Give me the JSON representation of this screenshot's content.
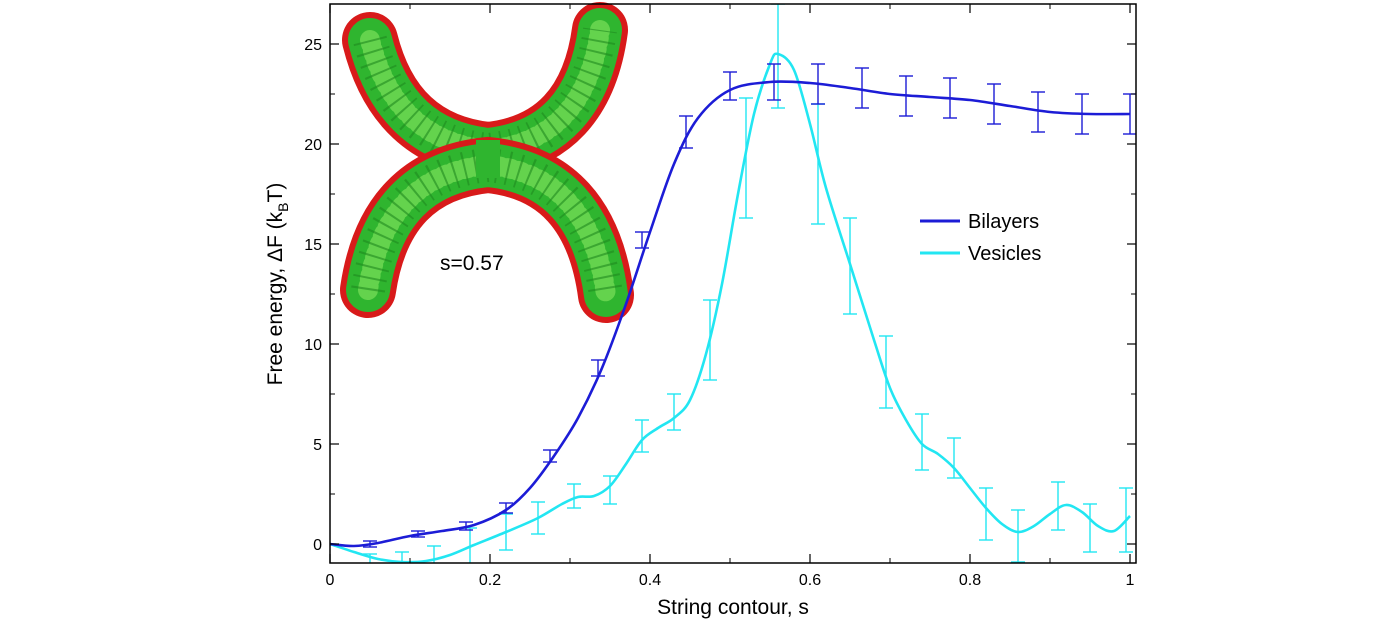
{
  "chart_data": {
    "type": "line",
    "xlabel": "String contour, s",
    "ylabel_main": "Free energy, ΔF (k",
    "ylabel_sub": "B",
    "ylabel_end": "T)",
    "xlim": [
      0,
      1
    ],
    "ylim": [
      -1,
      27
    ],
    "x_ticks": [
      0,
      0.2,
      0.4,
      0.6,
      0.8,
      1
    ],
    "x_tick_labels": [
      "0",
      "0.2",
      "0.4",
      "0.6",
      "0.8",
      "1"
    ],
    "y_ticks": [
      0,
      5,
      10,
      15,
      20,
      25
    ],
    "y_tick_labels": [
      "0",
      "5",
      "10",
      "15",
      "20",
      "25"
    ],
    "grid": false,
    "legend_position": "right",
    "inset_label": "s=0.57",
    "series": [
      {
        "name": "Bilayers",
        "color": "#1c1cd6",
        "curve": [
          [
            0,
            0
          ],
          [
            0.03,
            -0.1
          ],
          [
            0.06,
            0.05
          ],
          [
            0.1,
            0.4
          ],
          [
            0.14,
            0.65
          ],
          [
            0.18,
            0.95
          ],
          [
            0.22,
            1.7
          ],
          [
            0.25,
            2.8
          ],
          [
            0.28,
            4.4
          ],
          [
            0.31,
            6.3
          ],
          [
            0.34,
            8.8
          ],
          [
            0.37,
            12.0
          ],
          [
            0.4,
            15.6
          ],
          [
            0.43,
            19.0
          ],
          [
            0.46,
            21.3
          ],
          [
            0.5,
            22.7
          ],
          [
            0.55,
            23.1
          ],
          [
            0.6,
            23.05
          ],
          [
            0.65,
            22.8
          ],
          [
            0.7,
            22.5
          ],
          [
            0.75,
            22.35
          ],
          [
            0.8,
            22.2
          ],
          [
            0.85,
            21.9
          ],
          [
            0.9,
            21.6
          ],
          [
            0.95,
            21.5
          ],
          [
            1.0,
            21.5
          ]
        ],
        "error_bars": [
          {
            "x": 0.05,
            "y": 0.0,
            "err": 0.15
          },
          {
            "x": 0.11,
            "y": 0.5,
            "err": 0.15
          },
          {
            "x": 0.17,
            "y": 0.9,
            "err": 0.2
          },
          {
            "x": 0.22,
            "y": 1.8,
            "err": 0.25
          },
          {
            "x": 0.275,
            "y": 4.4,
            "err": 0.3
          },
          {
            "x": 0.335,
            "y": 8.8,
            "err": 0.4
          },
          {
            "x": 0.39,
            "y": 15.2,
            "err": 0.4
          },
          {
            "x": 0.445,
            "y": 20.6,
            "err": 0.8
          },
          {
            "x": 0.5,
            "y": 22.9,
            "err": 0.7
          },
          {
            "x": 0.555,
            "y": 23.1,
            "err": 0.9
          },
          {
            "x": 0.61,
            "y": 23.0,
            "err": 1.0
          },
          {
            "x": 0.665,
            "y": 22.8,
            "err": 1.0
          },
          {
            "x": 0.72,
            "y": 22.4,
            "err": 1.0
          },
          {
            "x": 0.775,
            "y": 22.3,
            "err": 1.0
          },
          {
            "x": 0.83,
            "y": 22.0,
            "err": 1.0
          },
          {
            "x": 0.885,
            "y": 21.6,
            "err": 1.0
          },
          {
            "x": 0.94,
            "y": 21.5,
            "err": 1.0
          },
          {
            "x": 1.0,
            "y": 21.5,
            "err": 1.0
          }
        ]
      },
      {
        "name": "Vesicles",
        "color": "#22e6f2",
        "curve": [
          [
            0,
            0
          ],
          [
            0.03,
            -0.4
          ],
          [
            0.06,
            -0.75
          ],
          [
            0.09,
            -0.9
          ],
          [
            0.12,
            -0.85
          ],
          [
            0.15,
            -0.55
          ],
          [
            0.18,
            -0.05
          ],
          [
            0.22,
            0.6
          ],
          [
            0.26,
            1.3
          ],
          [
            0.29,
            2.0
          ],
          [
            0.31,
            2.35
          ],
          [
            0.33,
            2.4
          ],
          [
            0.35,
            2.9
          ],
          [
            0.37,
            4.0
          ],
          [
            0.39,
            5.2
          ],
          [
            0.41,
            5.8
          ],
          [
            0.43,
            6.3
          ],
          [
            0.45,
            7.2
          ],
          [
            0.47,
            9.5
          ],
          [
            0.49,
            13.0
          ],
          [
            0.51,
            17.5
          ],
          [
            0.53,
            21.5
          ],
          [
            0.55,
            24.0
          ],
          [
            0.56,
            24.5
          ],
          [
            0.58,
            23.7
          ],
          [
            0.6,
            21.0
          ],
          [
            0.62,
            17.8
          ],
          [
            0.65,
            14.0
          ],
          [
            0.68,
            10.2
          ],
          [
            0.7,
            7.8
          ],
          [
            0.72,
            6.2
          ],
          [
            0.74,
            5.0
          ],
          [
            0.76,
            4.5
          ],
          [
            0.78,
            3.8
          ],
          [
            0.8,
            2.8
          ],
          [
            0.82,
            1.8
          ],
          [
            0.84,
            1.0
          ],
          [
            0.86,
            0.6
          ],
          [
            0.88,
            0.9
          ],
          [
            0.9,
            1.5
          ],
          [
            0.92,
            1.95
          ],
          [
            0.94,
            1.6
          ],
          [
            0.96,
            0.9
          ],
          [
            0.98,
            0.65
          ],
          [
            1.0,
            1.4
          ]
        ],
        "error_bars": [
          {
            "x": 0.05,
            "y": -0.8,
            "err": 0.3
          },
          {
            "x": 0.09,
            "y": -0.8,
            "err": 0.4
          },
          {
            "x": 0.13,
            "y": -0.6,
            "err": 0.5
          },
          {
            "x": 0.175,
            "y": -0.1,
            "err": 0.9
          },
          {
            "x": 0.22,
            "y": 0.6,
            "err": 0.9
          },
          {
            "x": 0.26,
            "y": 1.3,
            "err": 0.8
          },
          {
            "x": 0.305,
            "y": 2.4,
            "err": 0.6
          },
          {
            "x": 0.35,
            "y": 2.7,
            "err": 0.7
          },
          {
            "x": 0.39,
            "y": 5.4,
            "err": 0.8
          },
          {
            "x": 0.43,
            "y": 6.6,
            "err": 0.9
          },
          {
            "x": 0.475,
            "y": 10.2,
            "err": 2.0
          },
          {
            "x": 0.52,
            "y": 19.3,
            "err": 3.0
          },
          {
            "x": 0.56,
            "y": 24.4,
            "err": 2.6
          },
          {
            "x": 0.61,
            "y": 19.0,
            "err": 3.0
          },
          {
            "x": 0.65,
            "y": 13.9,
            "err": 2.4
          },
          {
            "x": 0.695,
            "y": 8.6,
            "err": 1.8
          },
          {
            "x": 0.74,
            "y": 5.1,
            "err": 1.4
          },
          {
            "x": 0.78,
            "y": 4.3,
            "err": 1.0
          },
          {
            "x": 0.82,
            "y": 1.5,
            "err": 1.3
          },
          {
            "x": 0.86,
            "y": 0.4,
            "err": 1.3
          },
          {
            "x": 0.91,
            "y": 1.9,
            "err": 1.2
          },
          {
            "x": 0.95,
            "y": 0.8,
            "err": 1.2
          },
          {
            "x": 0.995,
            "y": 1.2,
            "err": 1.6
          }
        ]
      }
    ]
  }
}
